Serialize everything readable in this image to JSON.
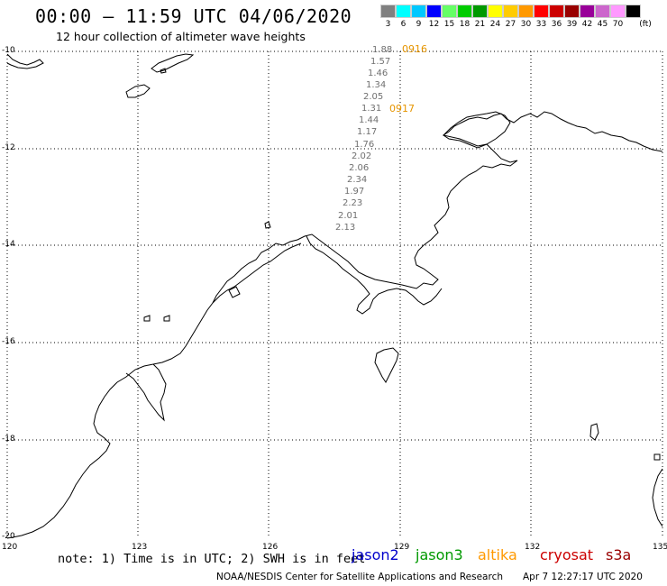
{
  "header": {
    "title": "00:00 – 11:59 UTC 04/06/2020",
    "subtitle": "12 hour collection of altimeter wave heights"
  },
  "color_scale": {
    "unit_label": "(ft)",
    "levels": [
      {
        "label": "3",
        "color": "#808080"
      },
      {
        "label": "6",
        "color": "#00ffff"
      },
      {
        "label": "9",
        "color": "#00c8ff"
      },
      {
        "label": "12",
        "color": "#0000ff"
      },
      {
        "label": "15",
        "color": "#66ff66"
      },
      {
        "label": "18",
        "color": "#00cc00"
      },
      {
        "label": "21",
        "color": "#009900"
      },
      {
        "label": "24",
        "color": "#ffff00"
      },
      {
        "label": "27",
        "color": "#ffcc00"
      },
      {
        "label": "30",
        "color": "#ff9900"
      },
      {
        "label": "33",
        "color": "#ff0000"
      },
      {
        "label": "36",
        "color": "#cc0000"
      },
      {
        "label": "39",
        "color": "#990000"
      },
      {
        "label": "42",
        "color": "#990099"
      },
      {
        "label": "45",
        "color": "#cc66cc"
      },
      {
        "label": "70",
        "color": "#ff99ff"
      },
      {
        "label": "",
        "color": "#000000"
      }
    ]
  },
  "map": {
    "lat_labels": [
      "-10",
      "-12",
      "-14",
      "-16",
      "-18",
      "-20"
    ],
    "lon_labels": [
      "120",
      "123",
      "126",
      "129",
      "132",
      "135"
    ]
  },
  "track": {
    "swh_values": [
      "1.88",
      "1.57",
      "1.46",
      "1.34",
      "2.05",
      "1.31",
      "1.44",
      "1.17",
      "1.76",
      "2.02",
      "2.06",
      "2.34",
      "1.97",
      "2.23",
      "2.01",
      "2.13"
    ],
    "time_markers": [
      "0916",
      "0917"
    ]
  },
  "footer": {
    "note": "note: 1) Time is in UTC; 2) SWH is in feet",
    "satellites": [
      {
        "name": "jason2",
        "color": "#0000cc"
      },
      {
        "name": "jason3",
        "color": "#009900"
      },
      {
        "name": "altika",
        "color": "#ff9900"
      },
      {
        "name": "cryosat",
        "color": "#cc0000"
      },
      {
        "name": "s3a",
        "color": "#990000"
      }
    ],
    "credit": "NOAA/NESDIS Center for Satellite Applications and Research",
    "timestamp": "Apr  7 12:27:17 UTC 2020"
  }
}
